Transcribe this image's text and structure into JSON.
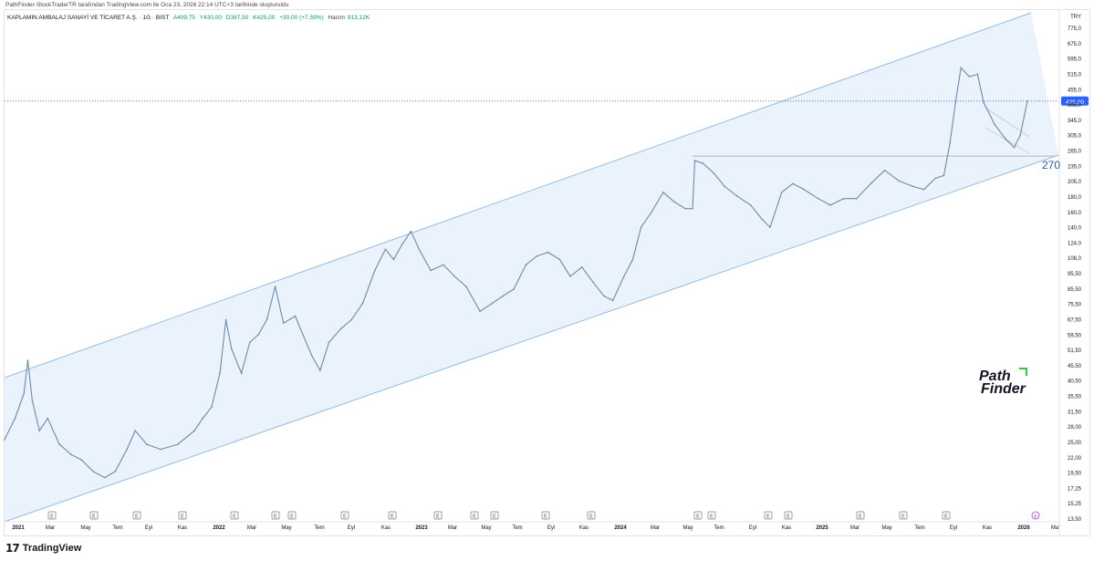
{
  "header": {
    "author_line": "PathFinder-StockTraderTR tarafından TradingView.com ile Oca 23, 2026 22:14 UTC+3 tarihinde oluşturuldu",
    "symbol_name": "KAPLAMIN AMBALAJ SANAYİ VE TİCARET A.Ş. · 1G · BIST",
    "open": "A409,75",
    "high": "Y430,00",
    "low": "D387,50",
    "close": "K425,00",
    "change": "+30,00 (+7,59%)",
    "volume_label": "Hacim",
    "volume_value": "913,12K",
    "currency": "TRY"
  },
  "annotation": {
    "level_label": "270"
  },
  "branding": {
    "tradingview_mark": "17",
    "tradingview_text": "TradingView",
    "watermark_line1": "Path",
    "watermark_line2": "Finder",
    "watermark_accent": "#2ecc40"
  },
  "colors": {
    "channel_fill": "#eaf2fb",
    "channel_line": "#90bfe8",
    "price_line": "#6a8cad",
    "support_line": "#b2b5be",
    "last_price_line": "#2962ff",
    "last_price_badge": "#2962ff"
  },
  "chart_data": {
    "type": "line",
    "title": "",
    "scale": "log",
    "ylim": [
      13.5,
      775
    ],
    "y_ticks": [
      "775,0",
      "675,0",
      "595,0",
      "515,0",
      "455,0",
      "395,0",
      "345,0",
      "305,0",
      "265,0",
      "235,0",
      "205,0",
      "180,0",
      "160,0",
      "140,0",
      "124,0",
      "108,0",
      "95,50",
      "85,50",
      "75,50",
      "67,50",
      "59,50",
      "51,50",
      "45,50",
      "40,50",
      "35,50",
      "31,50",
      "28,00",
      "25,00",
      "22,00",
      "19,50",
      "17,25",
      "15,25",
      "13,50"
    ],
    "last_price": "425,00",
    "x_ticks": [
      "2021",
      "Mar",
      "May",
      "Tem",
      "Eyl",
      "Kas",
      "2022",
      "Mar",
      "May",
      "Tem",
      "Eyl",
      "Kas",
      "2023",
      "Mar",
      "May",
      "Tem",
      "Eyl",
      "Kas",
      "2024",
      "Mar",
      "May",
      "Tem",
      "Eyl",
      "Kas",
      "2025",
      "Mar",
      "May",
      "Tem",
      "Eyl",
      "Kas",
      "2026",
      "Mar"
    ],
    "earnings_marker": "E",
    "dividend_marker": "₺",
    "horizontal_level": 270,
    "series": [
      {
        "values": [
          [
            "2021-01-01",
            26
          ],
          [
            "2021-01-20",
            31
          ],
          [
            "2021-02-05",
            38
          ],
          [
            "2021-02-12",
            50
          ],
          [
            "2021-02-20",
            36
          ],
          [
            "2021-03-05",
            28
          ],
          [
            "2021-03-20",
            31
          ],
          [
            "2021-04-10",
            25
          ],
          [
            "2021-05-01",
            23
          ],
          [
            "2021-05-20",
            22
          ],
          [
            "2021-06-10",
            20
          ],
          [
            "2021-07-01",
            19
          ],
          [
            "2021-07-20",
            20
          ],
          [
            "2021-08-10",
            24
          ],
          [
            "2021-08-25",
            28
          ],
          [
            "2021-09-15",
            25
          ],
          [
            "2021-10-10",
            24
          ],
          [
            "2021-11-10",
            25
          ],
          [
            "2021-12-10",
            28
          ],
          [
            "2021-12-25",
            31
          ],
          [
            "2022-01-10",
            34
          ],
          [
            "2022-01-25",
            45
          ],
          [
            "2022-02-05",
            70
          ],
          [
            "2022-02-15",
            55
          ],
          [
            "2022-03-05",
            45
          ],
          [
            "2022-03-20",
            58
          ],
          [
            "2022-04-05",
            62
          ],
          [
            "2022-04-20",
            70
          ],
          [
            "2022-05-05",
            92
          ],
          [
            "2022-05-20",
            68
          ],
          [
            "2022-06-10",
            72
          ],
          [
            "2022-07-10",
            52
          ],
          [
            "2022-07-25",
            46
          ],
          [
            "2022-08-10",
            58
          ],
          [
            "2022-09-01",
            65
          ],
          [
            "2022-09-20",
            70
          ],
          [
            "2022-10-10",
            80
          ],
          [
            "2022-11-01",
            105
          ],
          [
            "2022-11-20",
            125
          ],
          [
            "2022-12-05",
            115
          ],
          [
            "2022-12-20",
            130
          ],
          [
            "2023-01-05",
            145
          ],
          [
            "2023-01-20",
            125
          ],
          [
            "2023-02-10",
            105
          ],
          [
            "2023-03-05",
            110
          ],
          [
            "2023-03-25",
            100
          ],
          [
            "2023-04-15",
            92
          ],
          [
            "2023-05-10",
            75
          ],
          [
            "2023-06-01",
            80
          ],
          [
            "2023-06-20",
            85
          ],
          [
            "2023-07-10",
            90
          ],
          [
            "2023-08-01",
            110
          ],
          [
            "2023-08-20",
            118
          ],
          [
            "2023-09-10",
            122
          ],
          [
            "2023-10-01",
            115
          ],
          [
            "2023-10-20",
            100
          ],
          [
            "2023-11-10",
            108
          ],
          [
            "2023-12-01",
            95
          ],
          [
            "2023-12-20",
            85
          ],
          [
            "2024-01-05",
            82
          ],
          [
            "2024-01-25",
            100
          ],
          [
            "2024-02-10",
            115
          ],
          [
            "2024-02-25",
            150
          ],
          [
            "2024-03-15",
            170
          ],
          [
            "2024-04-05",
            200
          ],
          [
            "2024-04-25",
            185
          ],
          [
            "2024-05-15",
            175
          ],
          [
            "2024-05-28",
            175
          ],
          [
            "2024-06-01",
            260
          ],
          [
            "2024-06-15",
            255
          ],
          [
            "2024-07-05",
            235
          ],
          [
            "2024-07-25",
            210
          ],
          [
            "2024-08-15",
            195
          ],
          [
            "2024-09-10",
            180
          ],
          [
            "2024-10-01",
            160
          ],
          [
            "2024-10-15",
            150
          ],
          [
            "2024-11-05",
            200
          ],
          [
            "2024-11-25",
            215
          ],
          [
            "2024-12-15",
            205
          ],
          [
            "2025-01-10",
            190
          ],
          [
            "2025-02-01",
            180
          ],
          [
            "2025-02-25",
            190
          ],
          [
            "2025-03-20",
            190
          ],
          [
            "2025-04-15",
            215
          ],
          [
            "2025-05-10",
            240
          ],
          [
            "2025-06-05",
            220
          ],
          [
            "2025-06-30",
            210
          ],
          [
            "2025-07-20",
            205
          ],
          [
            "2025-08-10",
            225
          ],
          [
            "2025-08-25",
            230
          ],
          [
            "2025-09-05",
            300
          ],
          [
            "2025-09-15",
            420
          ],
          [
            "2025-09-25",
            560
          ],
          [
            "2025-10-10",
            520
          ],
          [
            "2025-10-25",
            530
          ],
          [
            "2025-11-05",
            420
          ],
          [
            "2025-11-25",
            350
          ],
          [
            "2025-12-15",
            310
          ],
          [
            "2025-12-30",
            290
          ],
          [
            "2026-01-10",
            320
          ],
          [
            "2026-01-23",
            425
          ]
        ]
      }
    ]
  }
}
